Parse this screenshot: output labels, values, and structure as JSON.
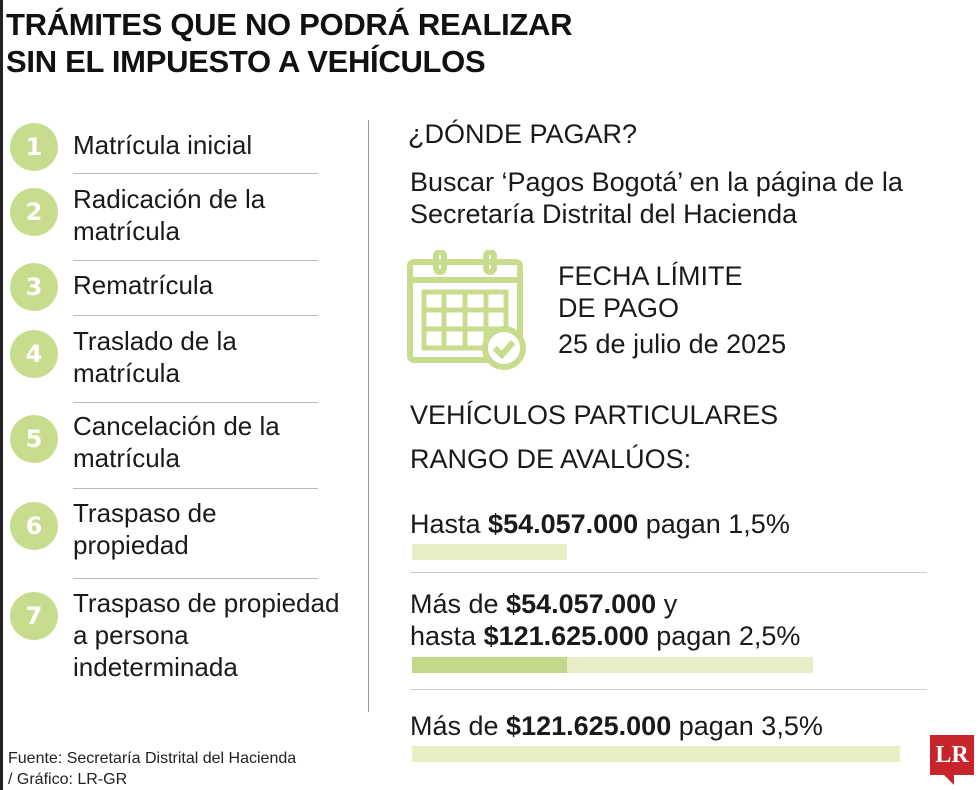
{
  "title_lines": [
    "TRÁMITES QUE NO PODRÁ REALIZAR",
    "SIN EL IMPUESTO A VEHÍCULOS"
  ],
  "items": [
    {
      "n": "1",
      "text": "Matrícula inicial"
    },
    {
      "n": "2",
      "text": "Radicación de la matrícula"
    },
    {
      "n": "3",
      "text": "Rematrícula"
    },
    {
      "n": "4",
      "text": "Traslado de la matrícula"
    },
    {
      "n": "5",
      "text": "Cancelación de la matrícula"
    },
    {
      "n": "6",
      "text": "Traspaso de propiedad"
    },
    {
      "n": "7",
      "text": "Traspaso de propiedad a persona indeterminada"
    }
  ],
  "where": {
    "heading": "¿DÓNDE PAGAR?",
    "text": "Buscar ‘Pagos Bogotá’ en la página de la Secretaría Distrital del Hacienda"
  },
  "deadline": {
    "icon": "calendar-check-icon",
    "heading_1": "FECHA LÍMITE",
    "heading_2": "DE PAGO",
    "date": "25 de julio de 2025"
  },
  "vehicles": {
    "heading": "VEHÍCULOS PARTICULARES",
    "subheading": "RANGO DE AVALÚOS:",
    "ranges": [
      {
        "pre": "Hasta ",
        "amount": "$54.057.000",
        "post": " pagan 1,5%",
        "rate": 1.5
      },
      {
        "pre": "Más de ",
        "amount": "$54.057.000",
        "post": " y",
        "pre2": "hasta ",
        "amount2": "$121.625.000",
        "post2": " pagan 2,5%",
        "rate": 2.5
      },
      {
        "pre": "Más de ",
        "amount": "$121.625.000",
        "post": " pagan 3,5%",
        "rate": 3.5
      }
    ]
  },
  "colors": {
    "accent": "#c8dc8e",
    "bar_light": "#e8efc6",
    "bar_dark": "#c3d98a",
    "logo": "#c8242b"
  },
  "source_lines": [
    "Fuente: Secretaría Distrital del Hacienda",
    "/ Gráfico: LR-GR"
  ],
  "logo": "LR"
}
